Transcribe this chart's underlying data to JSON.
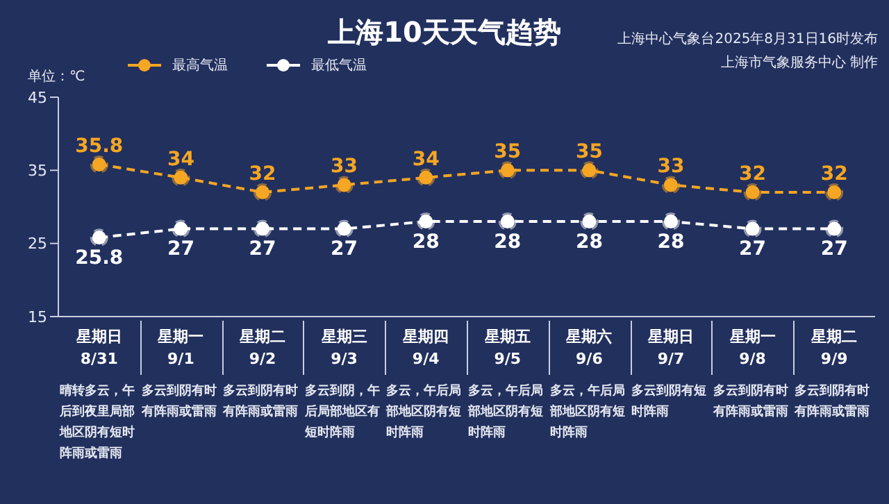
{
  "chart_data": {
    "type": "line",
    "title": "上海10天天气趋势",
    "ylabel": "单位：℃",
    "categories": [
      "星期日\n8/31",
      "星期一\n9/1",
      "星期二\n9/2",
      "星期三\n9/3",
      "星期四\n9/4",
      "星期五\n9/5",
      "星期六\n9/6",
      "星期日\n9/7",
      "星期一\n9/8",
      "星期二\n9/9"
    ],
    "series": [
      {
        "name": "最高气温",
        "color": "#f5a623",
        "values": [
          35.8,
          34,
          32,
          33,
          34,
          35,
          35,
          33,
          32,
          32
        ]
      },
      {
        "name": "最低气温",
        "color": "#ffffff",
        "values": [
          25.8,
          27,
          27,
          27,
          28,
          28,
          28,
          28,
          27,
          27
        ]
      }
    ],
    "ylim": [
      15,
      45
    ],
    "yticks": [
      15,
      25,
      35,
      45
    ],
    "grid": false,
    "legend": "top",
    "marker": "circle",
    "line_style": "dashed",
    "data_labels": true,
    "annotations": [
      "上海中心气象台2025年8月31日16时发布",
      "上海市气象服务中心 制作",
      "晴转多云，午后到夜里局部地区阴有短时阵雨或雷雨",
      "多云到阴有时有阵雨或雷雨",
      "多云到阴有时有阵雨或雷雨",
      "多云到阴，午后局部地区有短时阵雨",
      "多云，午后局部地区阴有短时阵雨",
      "多云，午后局部地区阴有短时阵雨",
      "多云，午后局部地区阴有短时阵雨",
      "多云到阴有短时阵雨",
      "多云到阴有时有阵雨或雷雨",
      "多云到阴有时有阵雨或雷雨"
    ]
  }
}
